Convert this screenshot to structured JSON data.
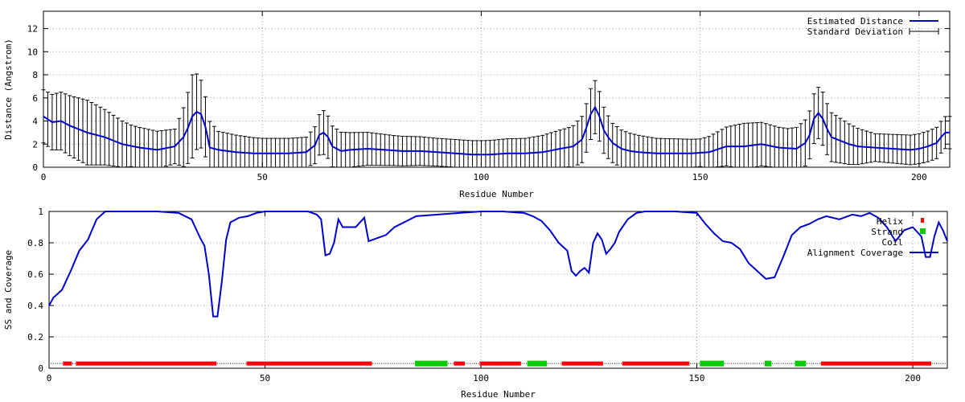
{
  "colors": {
    "distance_line": "#0000cc",
    "error_bars": "#000000",
    "coverage_line": "#0000cc",
    "helix": "#ff0000",
    "strand": "#00cc00",
    "coil": "#000000",
    "grid": "#a0a0a0"
  },
  "chart_data": [
    {
      "type": "line",
      "title": "",
      "xlabel": "Residue Number",
      "ylabel": "Distance (Angstrom)",
      "xlim": [
        0,
        207
      ],
      "ylim": [
        0,
        13.5
      ],
      "xticks": [
        "0",
        "50",
        "100",
        "150",
        "200"
      ],
      "yticks": [
        "0",
        "2",
        "4",
        "6",
        "8",
        "10",
        "12"
      ],
      "grid": true,
      "legend_position": "top-right",
      "legend": [
        "Estimated Distance",
        "Standard Deviation"
      ],
      "series": [
        {
          "name": "Estimated Distance",
          "x": [
            0,
            2,
            4,
            6,
            8,
            10,
            14,
            18,
            22,
            26,
            30,
            32,
            33,
            34,
            35,
            36,
            37,
            38,
            40,
            44,
            48,
            52,
            56,
            60,
            62,
            63,
            64,
            65,
            66,
            68,
            70,
            74,
            78,
            82,
            86,
            90,
            94,
            98,
            102,
            106,
            110,
            114,
            118,
            121,
            123,
            124,
            125,
            126,
            127,
            128,
            129,
            130,
            132,
            134,
            136,
            140,
            144,
            148,
            152,
            156,
            160,
            164,
            168,
            172,
            174,
            175,
            176,
            177,
            178,
            179,
            180,
            182,
            184,
            186,
            190,
            194,
            198,
            200,
            202,
            204,
            205,
            206,
            207
          ],
          "y": [
            4.4,
            3.9,
            4.0,
            3.6,
            3.3,
            3.0,
            2.6,
            2.0,
            1.7,
            1.5,
            1.8,
            2.6,
            3.4,
            4.4,
            4.8,
            4.6,
            3.5,
            1.7,
            1.5,
            1.3,
            1.2,
            1.2,
            1.2,
            1.3,
            1.9,
            2.8,
            3.0,
            2.6,
            1.8,
            1.4,
            1.5,
            1.6,
            1.5,
            1.4,
            1.4,
            1.3,
            1.2,
            1.1,
            1.1,
            1.2,
            1.2,
            1.3,
            1.6,
            1.8,
            2.4,
            3.4,
            4.6,
            5.2,
            4.4,
            3.2,
            2.6,
            2.1,
            1.6,
            1.4,
            1.3,
            1.2,
            1.2,
            1.2,
            1.3,
            1.8,
            1.8,
            2.0,
            1.7,
            1.6,
            2.1,
            2.8,
            4.2,
            4.7,
            4.2,
            3.3,
            2.6,
            2.3,
            2.0,
            1.8,
            1.7,
            1.6,
            1.5,
            1.6,
            1.8,
            2.1,
            2.6,
            3.0,
            3.0
          ]
        },
        {
          "name": "Standard Deviation",
          "note": "error bars approximately 1.2-1.7 around the line; about 3.5 at the peaks",
          "x": [
            0,
            10,
            20,
            30,
            34,
            40,
            50,
            60,
            64,
            70,
            80,
            90,
            100,
            110,
            120,
            126,
            130,
            140,
            150,
            160,
            170,
            178,
            190,
            200,
            207
          ],
          "err": [
            2.3,
            2.8,
            1.8,
            1.5,
            3.6,
            1.6,
            1.3,
            1.3,
            1.9,
            1.5,
            1.3,
            1.2,
            1.2,
            1.3,
            1.7,
            2.3,
            1.7,
            1.3,
            1.2,
            2.0,
            1.7,
            2.3,
            1.2,
            1.3,
            1.4
          ]
        }
      ]
    },
    {
      "type": "line",
      "title": "",
      "xlabel": "Residue Number",
      "ylabel": "SS and Coverage",
      "xlim": [
        0,
        208
      ],
      "ylim": [
        0,
        1.0
      ],
      "xticks": [
        "0",
        "50",
        "100",
        "150",
        "200"
      ],
      "yticks": [
        "0",
        "0.2",
        "0.4",
        "0.6",
        "0.8",
        "1"
      ],
      "grid": true,
      "legend_position": "top-right",
      "legend": [
        "Helix",
        "Strand",
        "Coil",
        "Alignment Coverage"
      ],
      "series": [
        {
          "name": "Alignment Coverage",
          "x": [
            0,
            1,
            3,
            5,
            7,
            9,
            11,
            13,
            15,
            20,
            25,
            30,
            33,
            35,
            36,
            37,
            38,
            39,
            40,
            41,
            42,
            44,
            46,
            48,
            50,
            60,
            62,
            63,
            64,
            65,
            66,
            67,
            68,
            69,
            70,
            71,
            72,
            73,
            74,
            75,
            78,
            80,
            85,
            90,
            95,
            100,
            105,
            110,
            112,
            114,
            116,
            118,
            120,
            121,
            122,
            123,
            124,
            125,
            126,
            127,
            128,
            129,
            130,
            131,
            132,
            134,
            136,
            138,
            140,
            145,
            150,
            152,
            154,
            156,
            158,
            160,
            162,
            164,
            166,
            168,
            170,
            172,
            174,
            176,
            178,
            180,
            183,
            186,
            188,
            190,
            192,
            194,
            196,
            198,
            200,
            202,
            203,
            204,
            205,
            206,
            207,
            208
          ],
          "y": [
            0.4,
            0.45,
            0.5,
            0.62,
            0.75,
            0.82,
            0.95,
            1.0,
            1.0,
            1.0,
            1.0,
            0.99,
            0.95,
            0.83,
            0.78,
            0.6,
            0.33,
            0.33,
            0.55,
            0.82,
            0.93,
            0.96,
            0.97,
            0.99,
            1.0,
            1.0,
            0.98,
            0.95,
            0.72,
            0.73,
            0.8,
            0.95,
            0.9,
            0.9,
            0.9,
            0.9,
            0.93,
            0.96,
            0.81,
            0.82,
            0.85,
            0.9,
            0.97,
            0.98,
            0.99,
            1.0,
            1.0,
            0.99,
            0.97,
            0.94,
            0.88,
            0.8,
            0.75,
            0.62,
            0.59,
            0.62,
            0.64,
            0.61,
            0.8,
            0.86,
            0.82,
            0.73,
            0.76,
            0.8,
            0.87,
            0.95,
            0.99,
            1.0,
            1.0,
            1.0,
            0.99,
            0.92,
            0.86,
            0.81,
            0.8,
            0.76,
            0.67,
            0.62,
            0.57,
            0.58,
            0.71,
            0.85,
            0.9,
            0.92,
            0.95,
            0.97,
            0.95,
            0.98,
            0.97,
            0.99,
            0.96,
            0.9,
            0.81,
            0.88,
            0.9,
            0.84,
            0.71,
            0.71,
            0.84,
            0.93,
            0.88,
            0.81
          ]
        },
        {
          "name": "Helix",
          "y_level": 0.03,
          "segments": [
            [
              3.5,
              5
            ],
            [
              6.5,
              38.5
            ],
            [
              46,
              74.5
            ],
            [
              94,
              96
            ],
            [
              100,
              109
            ],
            [
              119,
              128
            ],
            [
              133,
              148
            ],
            [
              179,
              204
            ]
          ]
        },
        {
          "name": "Strand",
          "y_level": 0.03,
          "segments": [
            [
              85,
              92
            ],
            [
              111,
              115
            ],
            [
              151,
              156
            ],
            [
              166,
              167
            ],
            [
              173,
              175
            ]
          ]
        },
        {
          "name": "Coil",
          "y_level": 0.03,
          "segments": [
            [
              0,
              208
            ]
          ]
        }
      ]
    }
  ]
}
